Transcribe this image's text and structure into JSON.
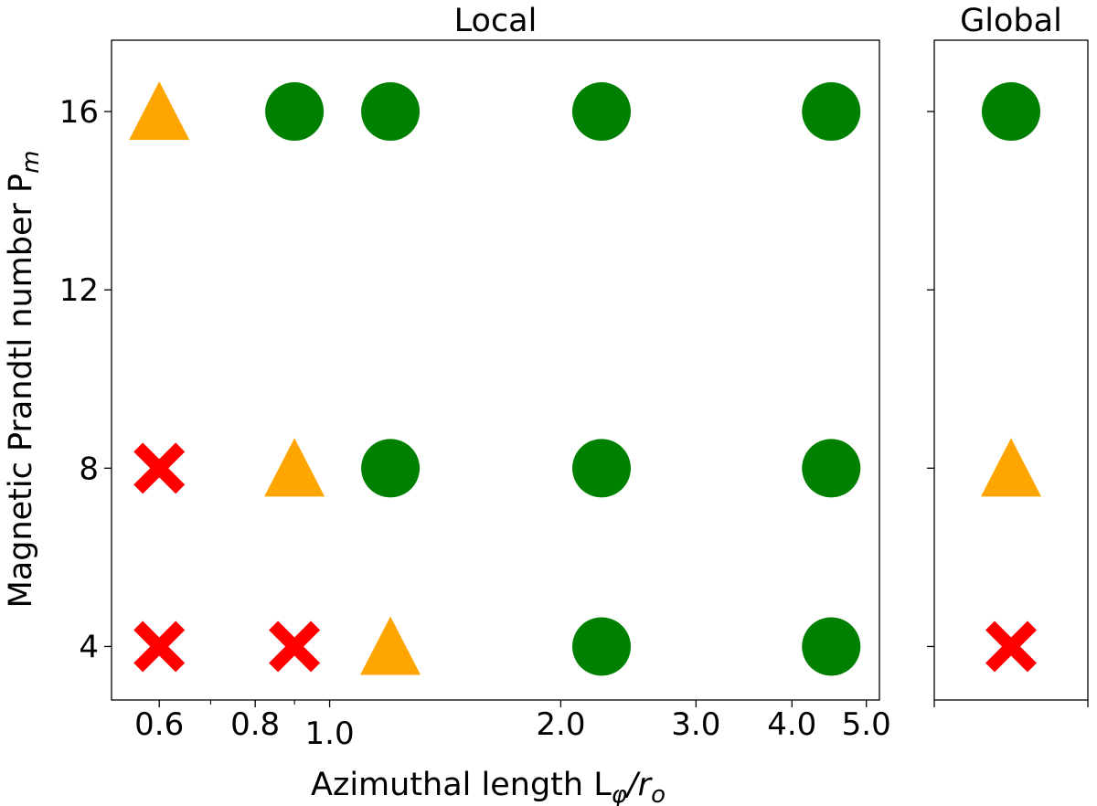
{
  "chart_data": [
    {
      "type": "scatter",
      "panel": "local",
      "title": "Local",
      "xlabel": "Azimuthal length L",
      "xlabel_sub": "φ",
      "xlabel_slash": "/r",
      "xlabel_sub2": "o",
      "ylabel": "Magnetic Prandtl number P",
      "ylabel_sub": "m",
      "xscale": "log",
      "xlim": [
        0.52,
        5.2
      ],
      "ylim": [
        2.8,
        17.6
      ],
      "x_ticks": [
        0.6,
        0.8,
        1.0,
        2.0,
        3.0,
        4.0,
        5.0
      ],
      "x_tick_labels": [
        "0.6",
        "0.8",
        "1.0",
        "2.0",
        "3.0",
        "4.0",
        "5.0"
      ],
      "x_minor_ticks": [
        0.7,
        0.9
      ],
      "y_ticks": [
        4,
        8,
        12,
        16
      ],
      "y_tick_labels": [
        "4",
        "8",
        "12",
        "16"
      ],
      "marker_colors": {
        "circle": "#008000",
        "triangle": "#ffa500",
        "cross": "#ff0000"
      },
      "points": [
        {
          "x": 0.6,
          "y": 16,
          "marker": "triangle"
        },
        {
          "x": 0.9,
          "y": 16,
          "marker": "circle"
        },
        {
          "x": 1.2,
          "y": 16,
          "marker": "circle"
        },
        {
          "x": 2.26,
          "y": 16,
          "marker": "circle"
        },
        {
          "x": 4.5,
          "y": 16,
          "marker": "circle"
        },
        {
          "x": 0.6,
          "y": 8,
          "marker": "cross"
        },
        {
          "x": 0.9,
          "y": 8,
          "marker": "triangle"
        },
        {
          "x": 1.2,
          "y": 8,
          "marker": "circle"
        },
        {
          "x": 2.26,
          "y": 8,
          "marker": "circle"
        },
        {
          "x": 4.5,
          "y": 8,
          "marker": "circle"
        },
        {
          "x": 0.6,
          "y": 4,
          "marker": "cross"
        },
        {
          "x": 0.9,
          "y": 4,
          "marker": "cross"
        },
        {
          "x": 1.2,
          "y": 4,
          "marker": "triangle"
        },
        {
          "x": 2.26,
          "y": 4,
          "marker": "circle"
        },
        {
          "x": 4.5,
          "y": 4,
          "marker": "circle"
        }
      ]
    },
    {
      "type": "scatter",
      "panel": "global",
      "title": "Global",
      "ylim": [
        2.8,
        17.6
      ],
      "y_ticks": [
        4,
        8,
        12,
        16
      ],
      "points": [
        {
          "y": 16,
          "marker": "circle"
        },
        {
          "y": 8,
          "marker": "triangle"
        },
        {
          "y": 4,
          "marker": "cross"
        }
      ]
    }
  ]
}
